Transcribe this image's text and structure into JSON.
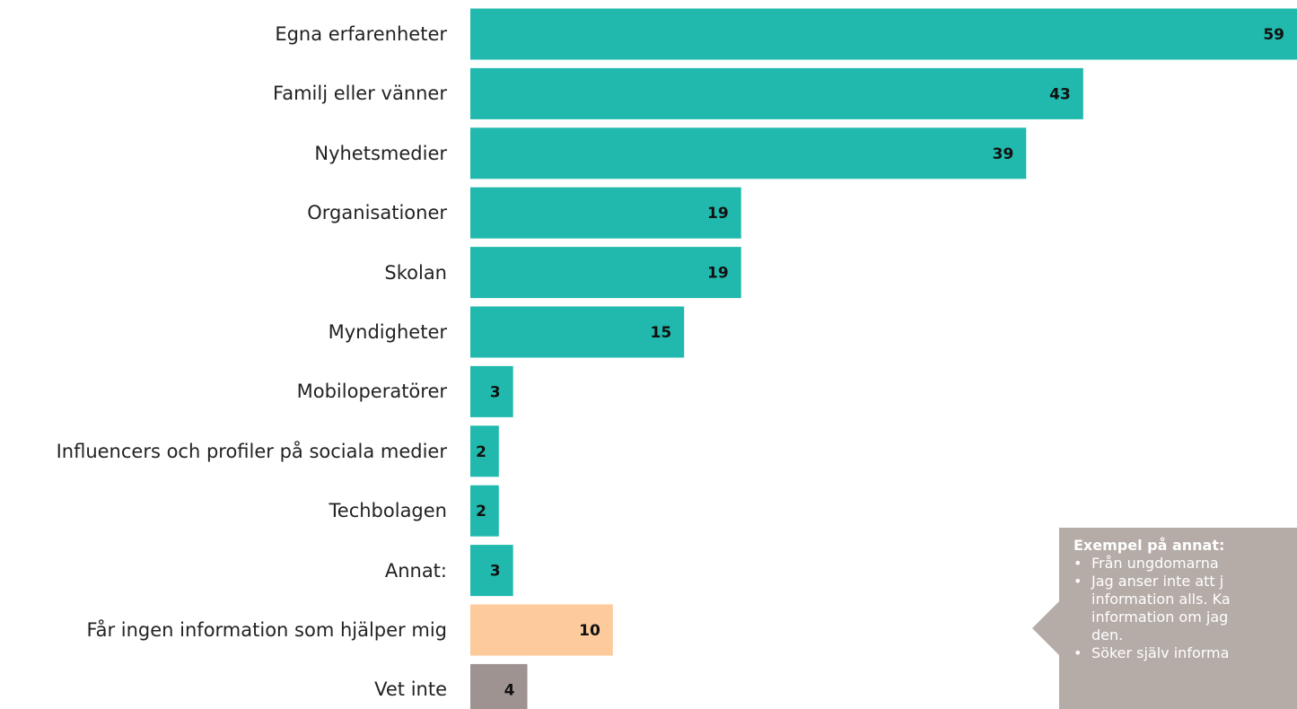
{
  "chart_data": {
    "type": "bar",
    "orientation": "horizontal",
    "categories": [
      "Egna erfarenheter",
      "Familj eller vänner",
      "Nyhetsmedier",
      "Organisationer",
      "Skolan",
      "Myndigheter",
      "Mobiloperatörer",
      "Influencers och profiler på sociala medier",
      "Techbolagen",
      "Annat:",
      "Får ingen information som hjälper mig",
      "Vet inte"
    ],
    "values": [
      59,
      43,
      39,
      19,
      19,
      15,
      3,
      2,
      2,
      3,
      10,
      4
    ],
    "colors": [
      "#21b9ad",
      "#21b9ad",
      "#21b9ad",
      "#21b9ad",
      "#21b9ad",
      "#21b9ad",
      "#21b9ad",
      "#21b9ad",
      "#21b9ad",
      "#21b9ad",
      "#fcca9b",
      "#9f9392"
    ],
    "xlim": [
      0,
      58
    ],
    "annotation": {
      "title": "Exempel på annat:",
      "lines": [
        "Från ungdomarna",
        "Jag anser inte att j",
        "information alls. Ka",
        "information om jag",
        "den.",
        "Söker själv informa"
      ]
    }
  }
}
